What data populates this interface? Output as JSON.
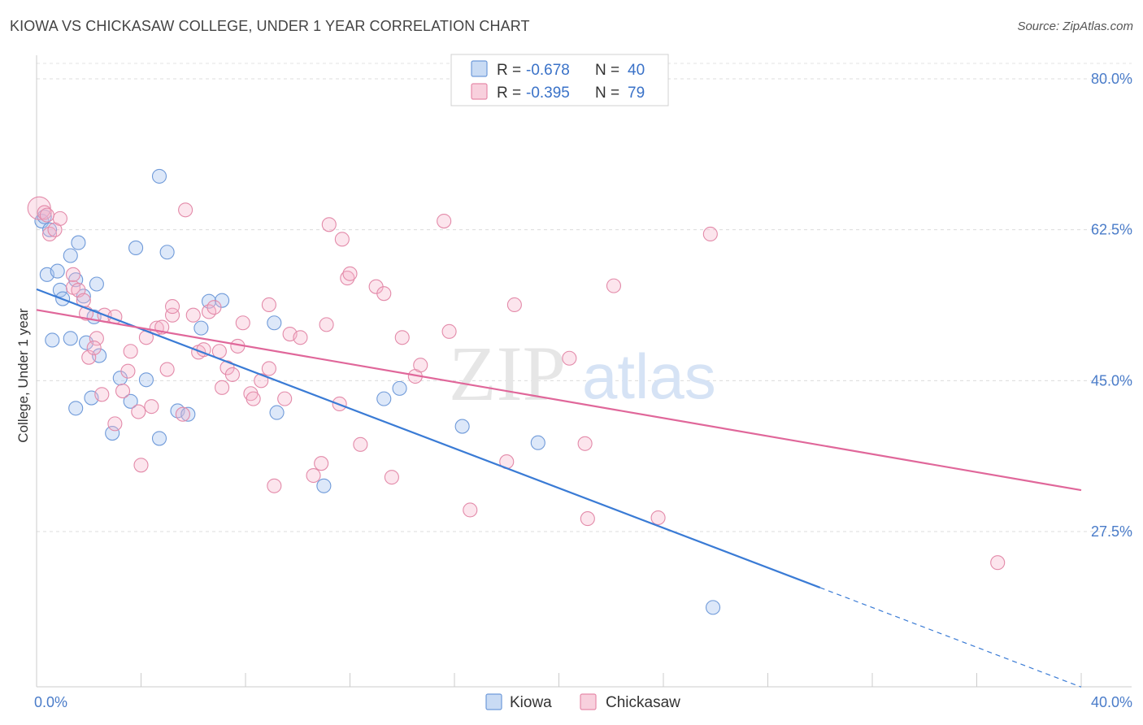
{
  "title": "KIOWA VS CHICKASAW COLLEGE, UNDER 1 YEAR CORRELATION CHART",
  "source": "Source: ZipAtlas.com",
  "watermark": {
    "zip": "ZIP",
    "atlas": "atlas"
  },
  "legend": {
    "r_label": "R =",
    "n_label": "N =",
    "entries": [
      {
        "r": "-0.678",
        "n": "40"
      },
      {
        "r": "-0.395",
        "n": "79"
      }
    ]
  },
  "chart_data": {
    "type": "scatter",
    "title": "KIOWA VS CHICKASAW COLLEGE, UNDER 1 YEAR CORRELATION CHART",
    "xlabel": "",
    "ylabel": "College, Under 1 year",
    "xlim": [
      0,
      40
    ],
    "ylim": [
      10,
      83
    ],
    "x_tick_labels": [
      {
        "value": 0,
        "label": "0.0%"
      },
      {
        "value": 40,
        "label": "40.0%"
      }
    ],
    "y_tick_labels": [
      {
        "value": 80,
        "label": "80.0%"
      },
      {
        "value": 62.5,
        "label": "62.5%"
      },
      {
        "value": 45,
        "label": "45.0%"
      },
      {
        "value": 27.5,
        "label": "27.5%"
      }
    ],
    "x_minor_ticks": [
      0,
      4,
      8,
      12,
      16,
      20,
      24,
      28,
      32,
      36,
      40
    ],
    "grid": true,
    "legend_position": "top-center",
    "colors": {
      "kiowa": "#5b8fd8",
      "chickasaw": "#e8789d",
      "kiowa_line": "#3a7bd5",
      "chickasaw_line": "#e0679a"
    },
    "series": [
      {
        "name": "Kiowa",
        "r": -0.678,
        "n": 40,
        "trend": {
          "x0": 0,
          "y0": 55.6,
          "x1": 30,
          "y1": 21.0,
          "dash_to_x": 40
        },
        "points": [
          [
            0.2,
            63.5
          ],
          [
            0.5,
            62.5
          ],
          [
            0.4,
            57.3
          ],
          [
            0.8,
            57.7
          ],
          [
            0.9,
            55.5
          ],
          [
            1.0,
            54.5
          ],
          [
            1.3,
            59.5
          ],
          [
            1.6,
            61.0
          ],
          [
            1.5,
            56.7
          ],
          [
            1.8,
            54.8
          ],
          [
            2.3,
            56.2
          ],
          [
            0.6,
            49.7
          ],
          [
            1.3,
            49.9
          ],
          [
            1.9,
            49.4
          ],
          [
            2.2,
            52.4
          ],
          [
            2.4,
            47.9
          ],
          [
            1.5,
            41.8
          ],
          [
            2.1,
            43.0
          ],
          [
            2.9,
            38.9
          ],
          [
            3.2,
            45.3
          ],
          [
            3.6,
            42.6
          ],
          [
            3.8,
            60.4
          ],
          [
            4.2,
            45.1
          ],
          [
            4.7,
            38.3
          ],
          [
            4.7,
            68.7
          ],
          [
            5.0,
            59.9
          ],
          [
            5.4,
            41.5
          ],
          [
            5.8,
            41.1
          ],
          [
            6.3,
            51.1
          ],
          [
            6.6,
            54.2
          ],
          [
            7.1,
            54.3
          ],
          [
            9.1,
            51.7
          ],
          [
            9.2,
            41.3
          ],
          [
            11.0,
            32.8
          ],
          [
            13.3,
            42.9
          ],
          [
            13.9,
            44.1
          ],
          [
            16.3,
            39.7
          ],
          [
            19.2,
            37.8
          ],
          [
            25.9,
            18.7
          ],
          [
            0.3,
            64.0
          ]
        ]
      },
      {
        "name": "Chickasaw",
        "r": -0.395,
        "n": 79,
        "trend": {
          "x0": 0,
          "y0": 53.2,
          "x1": 40,
          "y1": 32.3
        },
        "points": [
          [
            0.1,
            65.0
          ],
          [
            0.3,
            64.5
          ],
          [
            0.5,
            62.0
          ],
          [
            0.7,
            62.5
          ],
          [
            0.9,
            63.8
          ],
          [
            1.4,
            55.8
          ],
          [
            1.4,
            57.3
          ],
          [
            1.6,
            55.5
          ],
          [
            1.8,
            54.3
          ],
          [
            1.9,
            52.8
          ],
          [
            2.0,
            47.7
          ],
          [
            2.3,
            49.9
          ],
          [
            2.2,
            48.8
          ],
          [
            2.6,
            52.6
          ],
          [
            2.5,
            43.4
          ],
          [
            3.0,
            40.0
          ],
          [
            3.0,
            52.4
          ],
          [
            3.3,
            43.8
          ],
          [
            3.5,
            46.1
          ],
          [
            3.6,
            48.4
          ],
          [
            3.9,
            41.4
          ],
          [
            4.0,
            35.2
          ],
          [
            4.2,
            50.0
          ],
          [
            4.4,
            42.0
          ],
          [
            4.6,
            51.1
          ],
          [
            4.8,
            51.2
          ],
          [
            5.0,
            46.3
          ],
          [
            5.2,
            52.6
          ],
          [
            5.2,
            53.6
          ],
          [
            5.6,
            41.1
          ],
          [
            5.7,
            64.8
          ],
          [
            6.0,
            52.6
          ],
          [
            6.2,
            48.3
          ],
          [
            6.4,
            48.6
          ],
          [
            6.6,
            53.0
          ],
          [
            6.8,
            53.5
          ],
          [
            7.0,
            48.4
          ],
          [
            7.1,
            44.2
          ],
          [
            7.3,
            46.5
          ],
          [
            7.5,
            45.7
          ],
          [
            7.7,
            49.0
          ],
          [
            7.9,
            51.7
          ],
          [
            8.2,
            43.5
          ],
          [
            8.3,
            42.9
          ],
          [
            8.6,
            45.0
          ],
          [
            8.9,
            46.4
          ],
          [
            8.9,
            53.8
          ],
          [
            9.1,
            32.8
          ],
          [
            9.5,
            42.9
          ],
          [
            9.7,
            50.4
          ],
          [
            10.1,
            50.0
          ],
          [
            10.6,
            34.0
          ],
          [
            10.9,
            35.4
          ],
          [
            11.1,
            51.5
          ],
          [
            11.2,
            63.1
          ],
          [
            11.6,
            42.3
          ],
          [
            11.7,
            61.4
          ],
          [
            11.9,
            56.9
          ],
          [
            12.0,
            57.4
          ],
          [
            12.4,
            37.6
          ],
          [
            13.0,
            55.9
          ],
          [
            13.3,
            55.1
          ],
          [
            13.6,
            33.8
          ],
          [
            14.0,
            50.0
          ],
          [
            14.5,
            45.5
          ],
          [
            14.7,
            46.8
          ],
          [
            15.6,
            63.5
          ],
          [
            15.8,
            50.7
          ],
          [
            16.6,
            30.0
          ],
          [
            18.0,
            35.6
          ],
          [
            18.3,
            53.8
          ],
          [
            20.4,
            47.6
          ],
          [
            21.1,
            29.0
          ],
          [
            21.0,
            37.7
          ],
          [
            22.1,
            56.0
          ],
          [
            23.8,
            29.1
          ],
          [
            25.8,
            62.0
          ],
          [
            36.8,
            23.9
          ],
          [
            0.4,
            64.2
          ]
        ]
      }
    ]
  },
  "bottom_legend": [
    "Kiowa",
    "Chickasaw"
  ]
}
